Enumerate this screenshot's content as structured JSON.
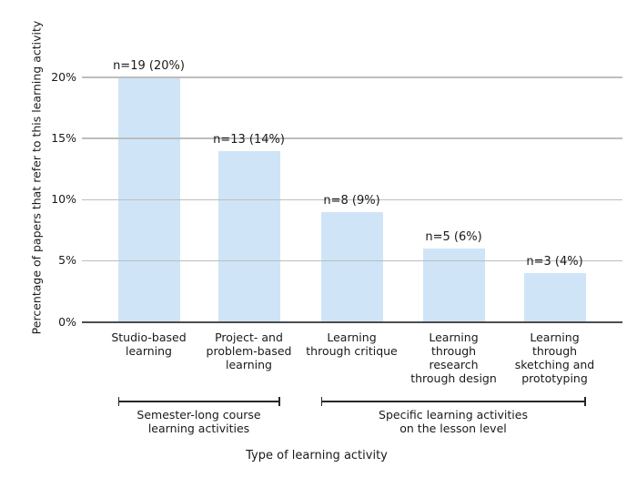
{
  "figure": {
    "background": "#ffffff",
    "text_color": "#1a1a1a"
  },
  "chart_data": {
    "type": "bar",
    "title": "",
    "xlabel": "Type of learning activity",
    "ylabel": "Percentage of papers that refer to this learning activity",
    "categories": [
      "Studio-based learning",
      "Project- and problem-based learning",
      "Learning through critique",
      "Learning through research through design",
      "Learning through sketching and prototyping"
    ],
    "category_label_lines": [
      [
        "Studio-based",
        "learning"
      ],
      [
        "Project- and",
        "problem-based",
        "learning"
      ],
      [
        "Learning",
        "through critique"
      ],
      [
        "Learning",
        "through",
        "research",
        "through design"
      ],
      [
        "Learning",
        "through",
        "sketching and",
        "prototyping"
      ]
    ],
    "n_values": [
      19,
      13,
      8,
      5,
      3
    ],
    "values_pct": [
      20,
      14,
      9,
      6,
      4
    ],
    "bar_labels": [
      "n=19 (20%)",
      "n=13 (14%)",
      "n=8 (9%)",
      "n=5 (6%)",
      "n=3 (4%)"
    ],
    "y_tick_labels": [
      "0%",
      "5%",
      "10%",
      "15%",
      "20%"
    ],
    "y_tick_values": [
      0,
      5,
      10,
      15,
      20
    ],
    "ylim": [
      0,
      22
    ],
    "grid": "horizontal",
    "legend": "none",
    "bar_color": "#cfe4f7",
    "gridline_color": "#bdbdbd",
    "axis_line_color": "#4d4d4d",
    "groups": [
      {
        "label_lines": [
          "Semester-long course",
          "learning activities"
        ],
        "bars": [
          0,
          1
        ]
      },
      {
        "label_lines": [
          "Specific learning activities",
          "on the lesson level"
        ],
        "bars": [
          2,
          3,
          4
        ]
      }
    ]
  }
}
